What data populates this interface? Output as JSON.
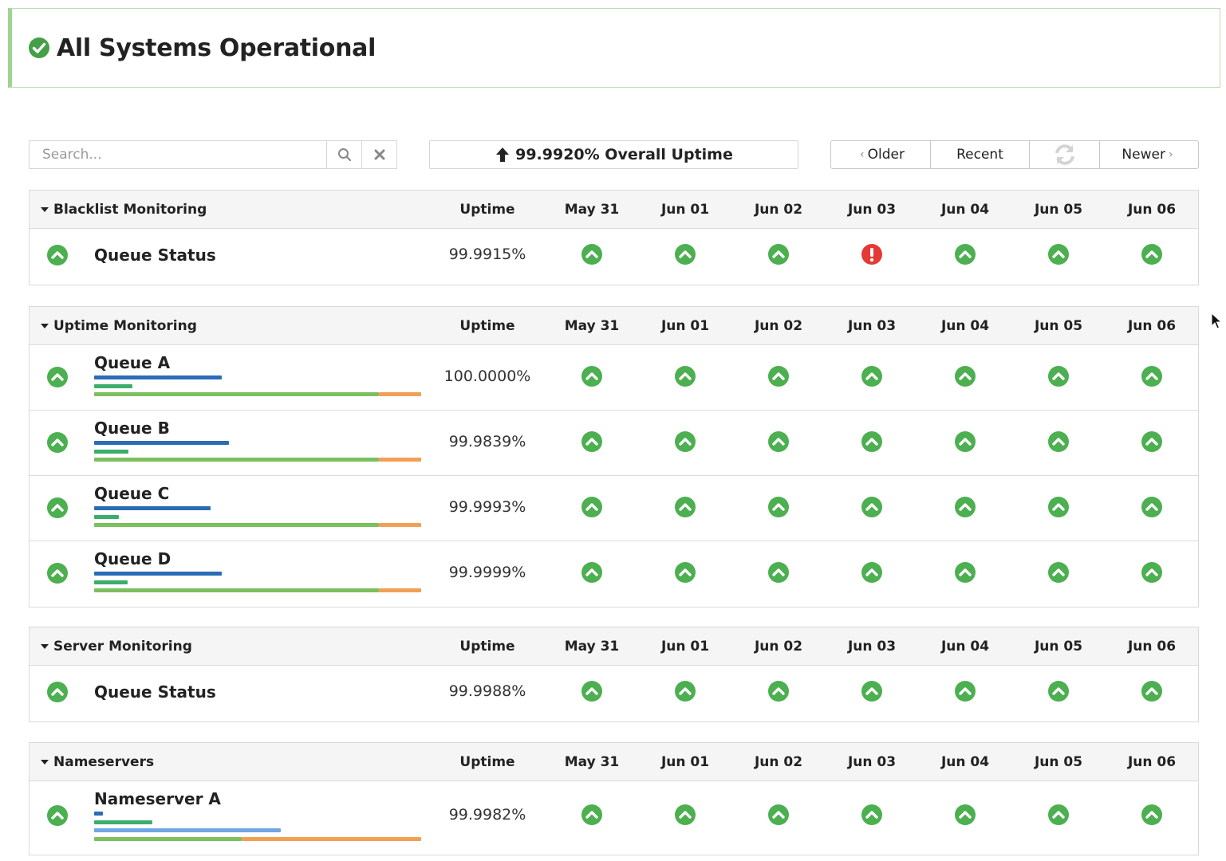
{
  "banner": {
    "title": "All Systems Operational",
    "icon": "check-circle-icon"
  },
  "toolbar": {
    "search_placeholder": "Search...",
    "overall_uptime": "99.9920% Overall Uptime",
    "older_label": "Older",
    "recent_label": "Recent",
    "newer_label": "Newer"
  },
  "columns": {
    "uptime": "Uptime",
    "dates": [
      "May 31",
      "Jun 01",
      "Jun 02",
      "Jun 03",
      "Jun 04",
      "Jun 05",
      "Jun 06"
    ]
  },
  "colors": {
    "green": "#4caf50",
    "red": "#e53935",
    "bar_blue": "#2a6db5",
    "bar_green": "#3cae6b",
    "bar_lightgreen": "#7cbf5e",
    "bar_orange": "#f0a055",
    "bar_lightblue": "#6fa6e3"
  },
  "groups": [
    {
      "title": "Blacklist Monitoring",
      "rows": [
        {
          "name": "Queue Status",
          "uptime": "99.9915%",
          "status": "up",
          "days": [
            "up",
            "up",
            "up",
            "down",
            "up",
            "up",
            "up"
          ]
        }
      ]
    },
    {
      "title": "Uptime Monitoring",
      "rows": [
        {
          "name": "Queue A",
          "uptime": "100.0000%",
          "status": "up",
          "days": [
            "up",
            "up",
            "up",
            "up",
            "up",
            "up",
            "up"
          ]
        },
        {
          "name": "Queue B",
          "uptime": "99.9839%",
          "status": "up",
          "days": [
            "up",
            "up",
            "up",
            "up",
            "up",
            "up",
            "up"
          ]
        },
        {
          "name": "Queue C",
          "uptime": "99.9993%",
          "status": "up",
          "days": [
            "up",
            "up",
            "up",
            "up",
            "up",
            "up",
            "up"
          ]
        },
        {
          "name": "Queue D",
          "uptime": "99.9999%",
          "status": "up",
          "days": [
            "up",
            "up",
            "up",
            "up",
            "up",
            "up",
            "up"
          ]
        }
      ]
    },
    {
      "title": "Server Monitoring",
      "rows": [
        {
          "name": "Queue Status",
          "uptime": "99.9988%",
          "status": "up",
          "days": [
            "up",
            "up",
            "up",
            "up",
            "up",
            "up",
            "up"
          ]
        }
      ]
    },
    {
      "title": "Nameservers",
      "rows": [
        {
          "name": "Nameserver A",
          "uptime": "99.9982%",
          "status": "up",
          "days": [
            "up",
            "up",
            "up",
            "up",
            "up",
            "up",
            "up"
          ]
        }
      ]
    }
  ]
}
